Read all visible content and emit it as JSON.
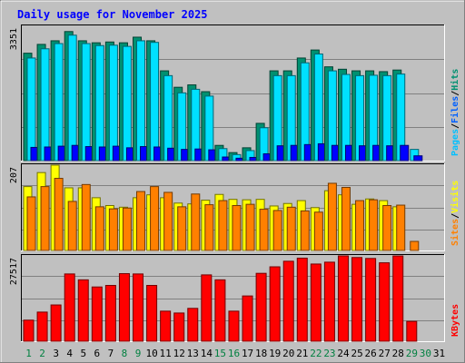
{
  "chart_data": {
    "type": "bar",
    "title": "Daily usage for November 2025",
    "categories": [
      "1",
      "2",
      "3",
      "4",
      "5",
      "6",
      "7",
      "8",
      "9",
      "10",
      "11",
      "12",
      "13",
      "14",
      "15",
      "16",
      "17",
      "18",
      "19",
      "20",
      "21",
      "22",
      "23",
      "24",
      "25",
      "26",
      "27",
      "28",
      "29",
      "30",
      "31"
    ],
    "weekend_days": [
      "1",
      "2",
      "8",
      "9",
      "15",
      "16",
      "22",
      "23",
      "29",
      "30"
    ],
    "panels": [
      {
        "name": "hits-files-pages",
        "max_label": "3351",
        "ylim": [
          0,
          3351
        ],
        "side_labels": [
          {
            "text": "Pages",
            "color": "#00c0ff"
          },
          {
            "text": "/",
            "color": "#000000"
          },
          {
            "text": "Files",
            "color": "#0060ff"
          },
          {
            "text": "/",
            "color": "#000000"
          },
          {
            "text": "Hits",
            "color": "#009070"
          }
        ],
        "series": [
          {
            "name": "Hits",
            "color": "#009070",
            "values": [
              2680,
              2900,
              2990,
              3220,
              2990,
              2940,
              2960,
              2940,
              3080,
              2990,
              2240,
              1830,
              1890,
              1720,
              380,
              200,
              320,
              930,
              2240,
              2240,
              2560,
              2760,
              2340,
              2280,
              2240,
              2240,
              2220,
              2260,
              0,
              0,
              0
            ]
          },
          {
            "name": "Files",
            "color": "#00e0ff",
            "values": [
              2560,
              2790,
              2920,
              3130,
              2920,
              2870,
              2880,
              2850,
              2990,
              2950,
              2120,
              1690,
              1780,
              1610,
              300,
              150,
              250,
              820,
              2120,
              2120,
              2440,
              2660,
              2240,
              2150,
              2120,
              2130,
              2120,
              2160,
              280,
              0,
              0
            ]
          },
          {
            "name": "Pages",
            "color": "#0000ff",
            "values": [
              330,
              340,
              360,
              380,
              350,
              340,
              360,
              320,
              350,
              340,
              310,
              280,
              290,
              270,
              90,
              60,
              80,
              170,
              370,
              380,
              400,
              420,
              380,
              380,
              370,
              380,
              370,
              380,
              120,
              0,
              0
            ]
          }
        ]
      },
      {
        "name": "visits-sites",
        "max_label": "207",
        "ylim": [
          0,
          207
        ],
        "side_labels": [
          {
            "text": "Sites",
            "color": "#ff8000"
          },
          {
            "text": "/",
            "color": "#000000"
          },
          {
            "text": "Visits",
            "color": "#ffff00"
          }
        ],
        "series": [
          {
            "name": "Visits",
            "color": "#ffff00",
            "values": [
              155,
              189,
              207,
              152,
              152,
              128,
              109,
              105,
              128,
              135,
              128,
              115,
              113,
              122,
              136,
              124,
              123,
              124,
              108,
              114,
              121,
              104,
              145,
              135,
              112,
              125,
              121,
              106,
              0,
              0,
              0
            ]
          },
          {
            "name": "Sites",
            "color": "#ff8000",
            "values": [
              130,
              155,
              175,
              119,
              160,
              106,
              101,
              103,
              143,
              155,
              141,
              106,
              137,
              111,
              121,
              109,
              112,
              100,
              97,
              105,
              96,
              93,
              163,
              153,
              121,
              123,
              109,
              110,
              22,
              0,
              0
            ]
          }
        ]
      },
      {
        "name": "kbytes",
        "max_label": "27517",
        "ylim": [
          0,
          27517
        ],
        "side_labels": [
          {
            "text": "KBytes",
            "color": "#ff0000"
          }
        ],
        "series": [
          {
            "name": "KBytes",
            "color": "#ff0000",
            "values": [
              6800,
              9400,
              11700,
              21700,
              19800,
              17500,
              18000,
              21800,
              21700,
              18000,
              9700,
              9100,
              10600,
              21400,
              19800,
              9700,
              14600,
              21900,
              24000,
              25800,
              26800,
              24900,
              25500,
              27517,
              27000,
              26700,
              25300,
              27500,
              6400,
              0,
              0
            ]
          }
        ]
      }
    ]
  }
}
